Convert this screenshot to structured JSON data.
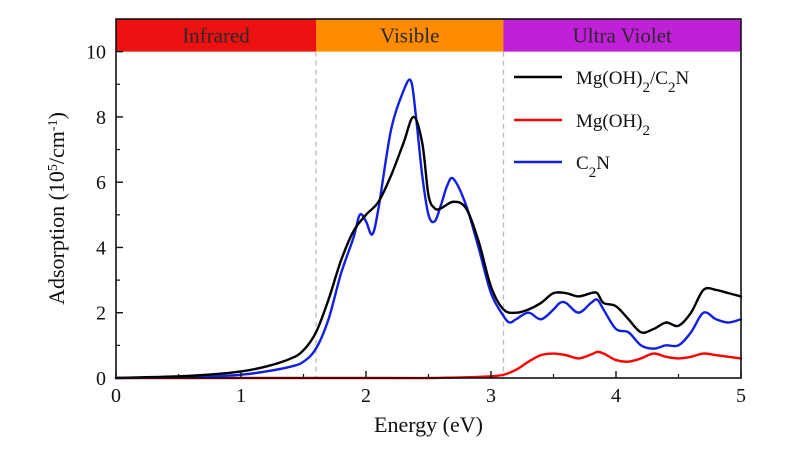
{
  "chart_data": {
    "type": "line",
    "xlabel": "Energy (eV)",
    "ylabel": {
      "main": "Adsorption (10",
      "sup1": "5",
      "mid": "/cm",
      "sup2": "-1",
      "end": ")"
    },
    "xlim": [
      0,
      5
    ],
    "ylim": [
      0,
      11
    ],
    "xticks": [
      0,
      1,
      2,
      3,
      4,
      5
    ],
    "yticks": [
      0,
      2,
      4,
      6,
      8,
      10
    ],
    "grid": false,
    "legend_position": "top-right",
    "bands": [
      {
        "label": "Infrared",
        "x0": 0,
        "x1": 1.6,
        "color": "#ee1111"
      },
      {
        "label": "Visible",
        "x0": 1.6,
        "x1": 3.1,
        "color": "#ff8c00"
      },
      {
        "label": "Ultra Violet",
        "x0": 3.1,
        "x1": 5,
        "color": "#c020d8"
      }
    ],
    "band_ymin": 10,
    "band_dividers": [
      1.6,
      3.1
    ],
    "series": [
      {
        "name": "Mg(OH)2/C2N",
        "legend": {
          "a": "Mg(OH)",
          "sub1": "2",
          "b": "/C",
          "sub2": "2",
          "c": "N"
        },
        "color": "#000000",
        "x": [
          0,
          0.5,
          0.8,
          1.0,
          1.2,
          1.4,
          1.5,
          1.6,
          1.7,
          1.8,
          1.9,
          2.0,
          2.1,
          2.2,
          2.3,
          2.38,
          2.45,
          2.5,
          2.55,
          2.6,
          2.7,
          2.8,
          2.9,
          3.0,
          3.1,
          3.2,
          3.3,
          3.4,
          3.5,
          3.6,
          3.7,
          3.8,
          3.85,
          3.9,
          4.0,
          4.1,
          4.2,
          4.3,
          4.4,
          4.5,
          4.6,
          4.7,
          4.8,
          4.9,
          5.0
        ],
        "y": [
          0,
          0.05,
          0.12,
          0.2,
          0.35,
          0.6,
          0.85,
          1.4,
          2.4,
          3.6,
          4.5,
          5.0,
          5.4,
          6.2,
          7.2,
          8.0,
          7.2,
          5.6,
          5.2,
          5.2,
          5.4,
          5.2,
          4.2,
          2.8,
          2.1,
          2.0,
          2.1,
          2.3,
          2.6,
          2.6,
          2.5,
          2.6,
          2.6,
          2.3,
          2.2,
          1.8,
          1.4,
          1.5,
          1.7,
          1.6,
          2.0,
          2.7,
          2.7,
          2.6,
          2.5
        ]
      },
      {
        "name": "Mg(OH)2",
        "legend": {
          "a": "Mg(OH)",
          "sub1": "2",
          "b": "",
          "sub2": "",
          "c": ""
        },
        "color": "#ff0000",
        "x": [
          0,
          1.0,
          2.0,
          2.5,
          2.8,
          3.0,
          3.1,
          3.2,
          3.3,
          3.4,
          3.5,
          3.6,
          3.7,
          3.8,
          3.85,
          3.9,
          4.0,
          4.1,
          4.2,
          4.3,
          4.4,
          4.5,
          4.6,
          4.7,
          4.8,
          4.9,
          5.0
        ],
        "y": [
          0,
          0,
          0,
          0,
          0.02,
          0.05,
          0.1,
          0.25,
          0.5,
          0.7,
          0.75,
          0.7,
          0.6,
          0.72,
          0.8,
          0.75,
          0.55,
          0.5,
          0.6,
          0.75,
          0.65,
          0.6,
          0.65,
          0.75,
          0.7,
          0.65,
          0.6
        ]
      },
      {
        "name": "C2N",
        "legend": {
          "a": "C",
          "sub1": "2",
          "b": "N",
          "sub2": "",
          "c": ""
        },
        "color": "#1020e0",
        "x": [
          0,
          0.5,
          0.8,
          1.0,
          1.2,
          1.4,
          1.5,
          1.6,
          1.7,
          1.8,
          1.9,
          1.95,
          2.0,
          2.05,
          2.1,
          2.2,
          2.3,
          2.36,
          2.4,
          2.45,
          2.5,
          2.55,
          2.6,
          2.65,
          2.7,
          2.8,
          2.9,
          3.0,
          3.1,
          3.15,
          3.2,
          3.3,
          3.4,
          3.5,
          3.55,
          3.6,
          3.7,
          3.8,
          3.85,
          3.9,
          4.0,
          4.1,
          4.2,
          4.3,
          4.4,
          4.5,
          4.6,
          4.7,
          4.8,
          4.9,
          5.0
        ],
        "y": [
          0,
          0.02,
          0.05,
          0.1,
          0.2,
          0.35,
          0.5,
          0.9,
          1.8,
          3.2,
          4.3,
          5.0,
          4.8,
          4.4,
          5.2,
          7.6,
          8.8,
          9.1,
          8.0,
          6.2,
          5.0,
          4.8,
          5.3,
          5.9,
          6.1,
          5.3,
          4.0,
          2.6,
          1.9,
          1.7,
          1.8,
          2.0,
          1.8,
          2.1,
          2.3,
          2.3,
          2.0,
          2.3,
          2.4,
          2.1,
          1.5,
          1.4,
          1.0,
          0.9,
          1.0,
          1.0,
          1.4,
          2.0,
          1.8,
          1.7,
          1.8
        ]
      }
    ]
  }
}
